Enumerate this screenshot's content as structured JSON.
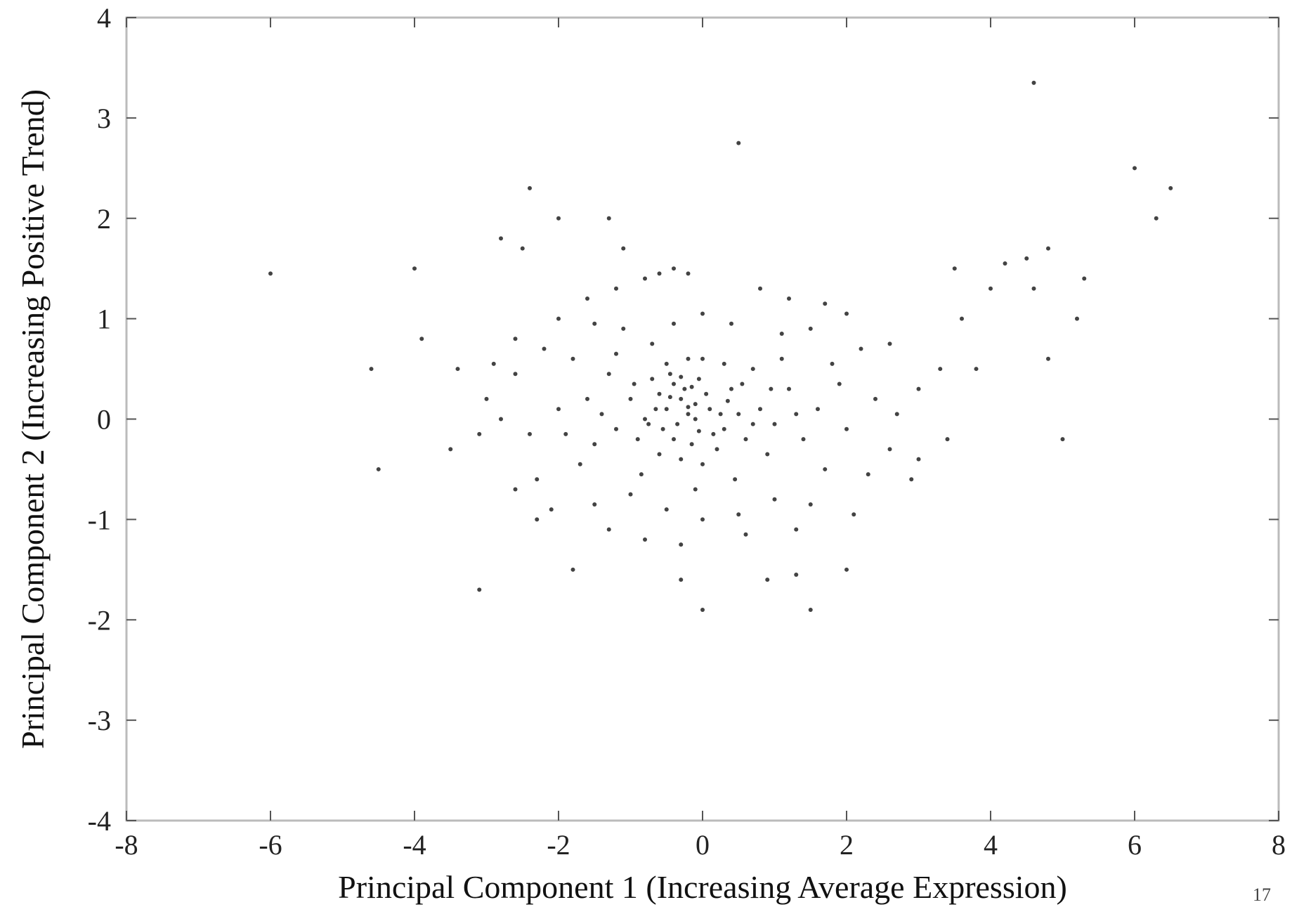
{
  "chart_data": {
    "type": "scatter",
    "title": "",
    "xlabel": "Principal Component 1 (Increasing Average Expression)",
    "ylabel": "Principal Component 2 (Increasing Positive Trend)",
    "xlim": [
      -8,
      8
    ],
    "ylim": [
      -4,
      4
    ],
    "xticks": [
      -8,
      -6,
      -4,
      -2,
      0,
      2,
      4,
      6,
      8
    ],
    "yticks": [
      -4,
      -3,
      -2,
      -1,
      0,
      1,
      2,
      3,
      4
    ],
    "xtick_labels": [
      "-8",
      "-6",
      "-4",
      "-2",
      "0",
      "2",
      "4",
      "6",
      "8"
    ],
    "ytick_labels": [
      "-4",
      "-3",
      "-2",
      "-1",
      "0",
      "1",
      "2",
      "3",
      "4"
    ],
    "grid": false,
    "marker_color": "#222222",
    "frame_color": "#bbbbbb",
    "points": [
      [
        -0.4,
        0.35
      ],
      [
        -0.3,
        0.2
      ],
      [
        -0.5,
        0.1
      ],
      [
        -0.2,
        0.05
      ],
      [
        -0.6,
        0.25
      ],
      [
        -0.35,
        -0.05
      ],
      [
        -0.1,
        0.15
      ],
      [
        -0.45,
        0.45
      ],
      [
        -0.25,
        0.3
      ],
      [
        -0.55,
        -0.1
      ],
      [
        0.1,
        0.1
      ],
      [
        0.3,
        -0.1
      ],
      [
        0.5,
        0.05
      ],
      [
        -0.8,
        0.0
      ],
      [
        -0.7,
        0.4
      ],
      [
        -0.9,
        -0.2
      ],
      [
        0.2,
        -0.3
      ],
      [
        0.6,
        -0.2
      ],
      [
        0.4,
        0.3
      ],
      [
        -0.15,
        -0.25
      ],
      [
        -1.0,
        0.2
      ],
      [
        -1.2,
        -0.1
      ],
      [
        0.8,
        0.1
      ],
      [
        1.0,
        -0.05
      ],
      [
        0.9,
        -0.35
      ],
      [
        -0.3,
        -0.4
      ],
      [
        0.0,
        -0.45
      ],
      [
        -0.6,
        -0.35
      ],
      [
        -1.3,
        0.45
      ],
      [
        1.2,
        0.3
      ],
      [
        -1.5,
        -0.25
      ],
      [
        1.4,
        -0.2
      ],
      [
        0.3,
        0.55
      ],
      [
        -0.2,
        0.6
      ],
      [
        0.7,
        0.5
      ],
      [
        -0.05,
        0.4
      ],
      [
        0.15,
        -0.15
      ],
      [
        -0.75,
        -0.05
      ],
      [
        0.05,
        0.25
      ],
      [
        -0.4,
        -0.2
      ],
      [
        -1.6,
        0.2
      ],
      [
        1.6,
        0.1
      ],
      [
        -2.0,
        0.1
      ],
      [
        2.0,
        -0.1
      ],
      [
        -2.4,
        -0.15
      ],
      [
        2.4,
        0.2
      ],
      [
        -1.8,
        0.6
      ],
      [
        1.8,
        0.55
      ],
      [
        -1.7,
        -0.45
      ],
      [
        1.7,
        -0.5
      ],
      [
        -2.6,
        0.45
      ],
      [
        2.6,
        -0.3
      ],
      [
        -2.8,
        0.0
      ],
      [
        2.7,
        0.05
      ],
      [
        -2.2,
        0.7
      ],
      [
        2.2,
        0.7
      ],
      [
        -2.3,
        -0.6
      ],
      [
        2.3,
        -0.55
      ],
      [
        -1.1,
        0.9
      ],
      [
        1.1,
        0.85
      ],
      [
        -1.0,
        -0.75
      ],
      [
        1.0,
        -0.8
      ],
      [
        -0.4,
        0.95
      ],
      [
        0.4,
        0.95
      ],
      [
        0.0,
        1.05
      ],
      [
        -0.5,
        -0.9
      ],
      [
        0.5,
        -0.95
      ],
      [
        0.0,
        -1.0
      ],
      [
        -1.5,
        0.95
      ],
      [
        1.5,
        0.9
      ],
      [
        -1.5,
        -0.85
      ],
      [
        1.5,
        -0.85
      ],
      [
        -2.6,
        0.8
      ],
      [
        2.6,
        0.75
      ],
      [
        -2.6,
        -0.7
      ],
      [
        -3.0,
        0.2
      ],
      [
        3.0,
        0.3
      ],
      [
        -3.1,
        -0.15
      ],
      [
        3.0,
        -0.4
      ],
      [
        -2.9,
        0.55
      ],
      [
        2.9,
        -0.6
      ],
      [
        -2.0,
        1.0
      ],
      [
        2.0,
        1.05
      ],
      [
        -2.1,
        -0.9
      ],
      [
        2.1,
        -0.95
      ],
      [
        -1.2,
        1.3
      ],
      [
        1.2,
        1.2
      ],
      [
        -0.8,
        1.4
      ],
      [
        0.8,
        1.3
      ],
      [
        -0.2,
        1.45
      ],
      [
        -0.4,
        1.5
      ],
      [
        -0.6,
        1.45
      ],
      [
        -0.8,
        -1.2
      ],
      [
        0.6,
        -1.15
      ],
      [
        -0.3,
        -1.25
      ],
      [
        -1.6,
        1.2
      ],
      [
        1.7,
        1.15
      ],
      [
        -1.3,
        -1.1
      ],
      [
        1.3,
        -1.1
      ],
      [
        -2.3,
        -1.0
      ],
      [
        -3.4,
        0.5
      ],
      [
        3.3,
        0.5
      ],
      [
        -3.5,
        -0.3
      ],
      [
        3.4,
        -0.2
      ],
      [
        3.6,
        1.0
      ],
      [
        3.5,
        1.5
      ],
      [
        4.0,
        1.3
      ],
      [
        4.2,
        1.55
      ],
      [
        4.5,
        1.6
      ],
      [
        4.8,
        1.7
      ],
      [
        4.6,
        1.3
      ],
      [
        -4.6,
        0.5
      ],
      [
        -4.5,
        -0.5
      ],
      [
        -6.0,
        1.45
      ],
      [
        -2.4,
        2.3
      ],
      [
        -2.0,
        2.0
      ],
      [
        -1.3,
        2.0
      ],
      [
        -1.1,
        1.7
      ],
      [
        0.5,
        2.75
      ],
      [
        4.6,
        3.35
      ],
      [
        6.0,
        2.5
      ],
      [
        6.3,
        2.0
      ],
      [
        6.5,
        2.3
      ],
      [
        5.2,
        1.0
      ],
      [
        -2.5,
        1.7
      ],
      [
        -2.8,
        1.8
      ],
      [
        -4.0,
        1.5
      ],
      [
        -3.9,
        0.8
      ],
      [
        -0.3,
        -1.6
      ],
      [
        0.0,
        -1.9
      ],
      [
        1.5,
        -1.9
      ],
      [
        1.3,
        -1.55
      ],
      [
        2.0,
        -1.5
      ],
      [
        0.9,
        -1.6
      ],
      [
        -1.8,
        -1.5
      ],
      [
        -3.1,
        -1.7
      ],
      [
        3.8,
        0.5
      ],
      [
        5.0,
        -0.2
      ],
      [
        4.8,
        0.6
      ],
      [
        5.3,
        1.4
      ],
      [
        -0.1,
        0.0
      ],
      [
        -0.2,
        0.12
      ],
      [
        -0.3,
        0.42
      ],
      [
        -0.45,
        0.22
      ],
      [
        -0.15,
        0.32
      ],
      [
        0.25,
        0.05
      ],
      [
        0.35,
        0.18
      ],
      [
        -0.65,
        0.1
      ],
      [
        -0.05,
        -0.12
      ],
      [
        -0.5,
        0.55
      ],
      [
        0.0,
        0.6
      ],
      [
        0.55,
        0.35
      ],
      [
        -0.95,
        0.35
      ],
      [
        0.7,
        -0.05
      ],
      [
        1.3,
        0.05
      ],
      [
        -1.4,
        0.05
      ],
      [
        -0.85,
        -0.55
      ],
      [
        0.45,
        -0.6
      ],
      [
        -0.1,
        -0.7
      ],
      [
        1.1,
        0.6
      ],
      [
        -1.2,
        0.65
      ],
      [
        1.9,
        0.35
      ],
      [
        -1.9,
        -0.15
      ],
      [
        0.95,
        0.3
      ],
      [
        -0.7,
        0.75
      ]
    ]
  },
  "page_number": "17"
}
